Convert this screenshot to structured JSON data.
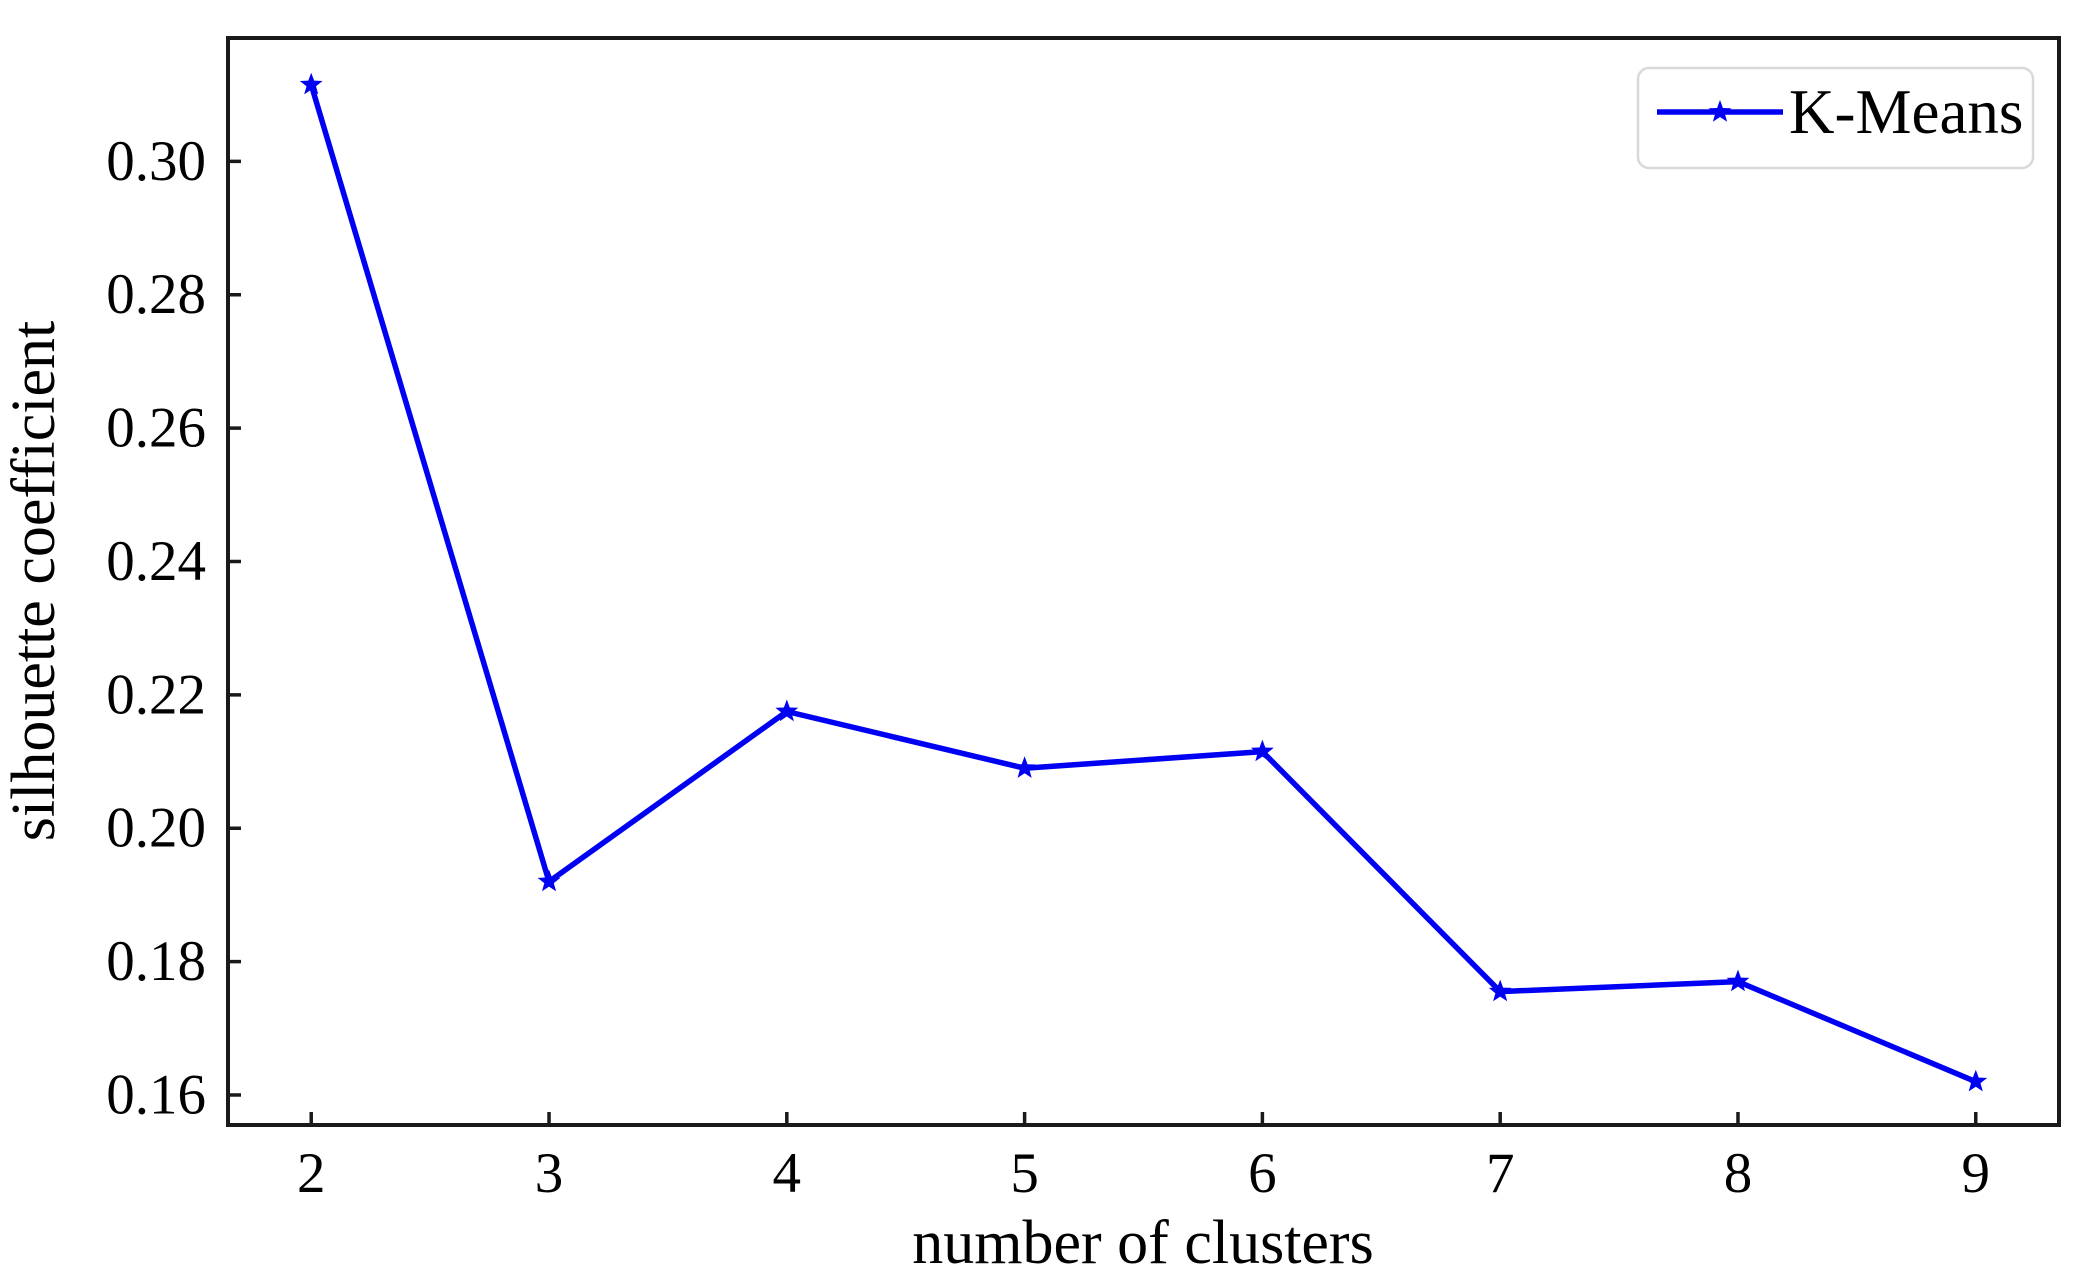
{
  "chart_data": {
    "type": "line",
    "title": "",
    "xlabel": "number of clusters",
    "ylabel": "silhouette coefficient",
    "x": [
      2,
      3,
      4,
      5,
      6,
      7,
      8,
      9
    ],
    "series": [
      {
        "name": "K-Means",
        "values": [
          0.3115,
          0.192,
          0.2175,
          0.209,
          0.2115,
          0.1755,
          0.177,
          0.162
        ]
      }
    ],
    "xticks": [
      2,
      3,
      4,
      5,
      6,
      7,
      8,
      9
    ],
    "xtick_labels": [
      "2",
      "3",
      "4",
      "5",
      "6",
      "7",
      "8",
      "9"
    ],
    "yticks": [
      0.16,
      0.18,
      0.2,
      0.22,
      0.24,
      0.26,
      0.28,
      0.3
    ],
    "ytick_labels": [
      "0.16",
      "0.18",
      "0.20",
      "0.22",
      "0.24",
      "0.26",
      "0.28",
      "0.30"
    ],
    "xlim": [
      1.65,
      9.35
    ],
    "ylim": [
      0.1555,
      0.3185
    ],
    "grid": false,
    "marker": "star",
    "legend_position": "upper right",
    "legend_entries": [
      "K-Means"
    ],
    "colors": {
      "line": "#0000f2",
      "marker": "#0000f2",
      "axis": "#1a1a1a",
      "text": "#000000",
      "legend_border": "#d9d9d9",
      "background": "#ffffff"
    }
  }
}
